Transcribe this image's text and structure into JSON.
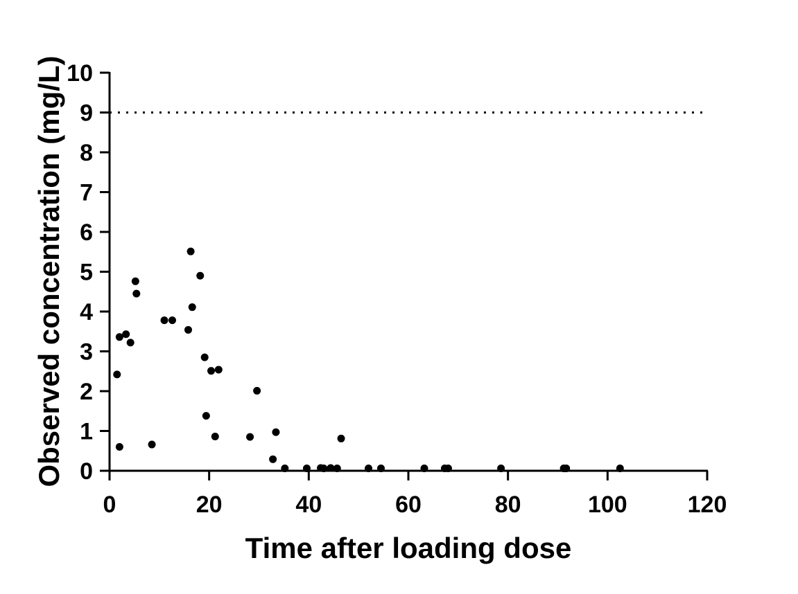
{
  "chart_data": {
    "type": "scatter",
    "xlabel": "Time after loading dose",
    "ylabel": "Observed concentration (mg/L)",
    "xlim": [
      0,
      120
    ],
    "ylim": [
      0,
      10
    ],
    "xticks": [
      0,
      20,
      40,
      60,
      80,
      100,
      120
    ],
    "yticks": [
      0,
      1,
      2,
      3,
      4,
      5,
      6,
      7,
      8,
      9,
      10
    ],
    "grid": false,
    "reference_line": {
      "y": 9,
      "style": "dotted"
    },
    "marker_color": "#000000",
    "points": [
      {
        "x": 1.5,
        "y": 2.42
      },
      {
        "x": 2.0,
        "y": 3.36
      },
      {
        "x": 2.0,
        "y": 0.6
      },
      {
        "x": 3.3,
        "y": 3.43
      },
      {
        "x": 4.2,
        "y": 3.22
      },
      {
        "x": 5.2,
        "y": 4.76
      },
      {
        "x": 5.4,
        "y": 4.45
      },
      {
        "x": 8.5,
        "y": 0.66
      },
      {
        "x": 11.0,
        "y": 3.78
      },
      {
        "x": 12.6,
        "y": 3.78
      },
      {
        "x": 15.8,
        "y": 3.54
      },
      {
        "x": 16.3,
        "y": 5.51
      },
      {
        "x": 16.6,
        "y": 4.11
      },
      {
        "x": 18.2,
        "y": 4.9
      },
      {
        "x": 19.1,
        "y": 2.85
      },
      {
        "x": 19.4,
        "y": 1.38
      },
      {
        "x": 20.4,
        "y": 2.51
      },
      {
        "x": 21.2,
        "y": 0.86
      },
      {
        "x": 21.9,
        "y": 2.54
      },
      {
        "x": 28.2,
        "y": 0.85
      },
      {
        "x": 29.6,
        "y": 2.01
      },
      {
        "x": 32.8,
        "y": 0.29
      },
      {
        "x": 33.4,
        "y": 0.97
      },
      {
        "x": 35.2,
        "y": 0.06
      },
      {
        "x": 39.6,
        "y": 0.06
      },
      {
        "x": 42.4,
        "y": 0.07
      },
      {
        "x": 43.0,
        "y": 0.06
      },
      {
        "x": 44.4,
        "y": 0.07
      },
      {
        "x": 45.7,
        "y": 0.06
      },
      {
        "x": 46.5,
        "y": 0.81
      },
      {
        "x": 52.0,
        "y": 0.06
      },
      {
        "x": 54.5,
        "y": 0.06
      },
      {
        "x": 63.2,
        "y": 0.06
      },
      {
        "x": 67.3,
        "y": 0.06
      },
      {
        "x": 68.0,
        "y": 0.06
      },
      {
        "x": 78.6,
        "y": 0.06
      },
      {
        "x": 91.2,
        "y": 0.06
      },
      {
        "x": 91.7,
        "y": 0.06
      },
      {
        "x": 102.5,
        "y": 0.06
      }
    ]
  }
}
